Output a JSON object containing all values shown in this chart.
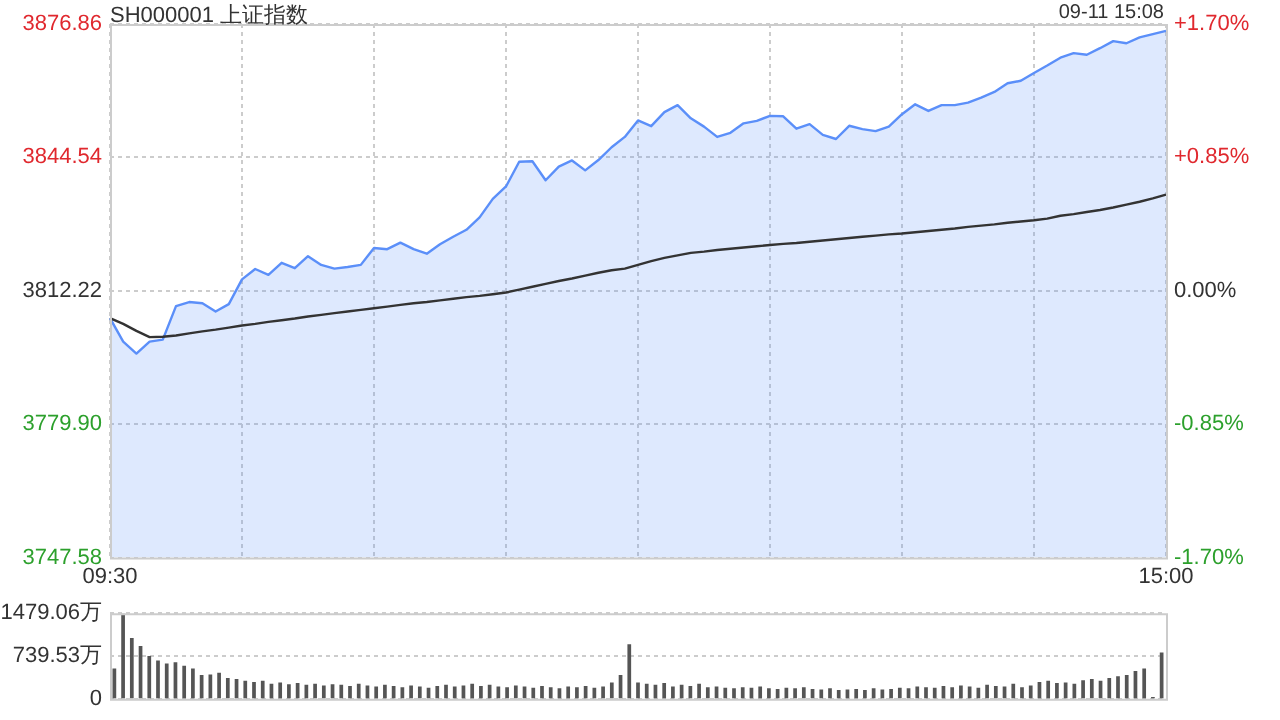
{
  "chart_data": [
    {
      "type": "line",
      "title": "SH000001 上证指数",
      "annotations": [
        "09-11 15:08"
      ],
      "grid": true,
      "marker": "none",
      "categories": [
        "09:30",
        null,
        null,
        null,
        null,
        null,
        null,
        null,
        null,
        null,
        null,
        null,
        null,
        null,
        null,
        null,
        null,
        null,
        null,
        null,
        null,
        null,
        null,
        null,
        null,
        null,
        null,
        null,
        null,
        null,
        null,
        null,
        null,
        null,
        null,
        null,
        null,
        null,
        null,
        null,
        null,
        null,
        null,
        null,
        null,
        null,
        null,
        null,
        null,
        null,
        null,
        null,
        null,
        null,
        null,
        null,
        null,
        null,
        null,
        null,
        null,
        null,
        null,
        null,
        null,
        null,
        null,
        null,
        null,
        null,
        null,
        null,
        null,
        null,
        null,
        null,
        null,
        null,
        null,
        null,
        "15:00"
      ],
      "ylim": [
        3747.58,
        3876.86
      ],
      "yticks": [
        3747.58,
        {
          "value": 3779.9,
          "label": "3779.90"
        },
        3812.22,
        3844.54,
        3876.86
      ],
      "y2lim": [
        -1.7,
        1.7
      ],
      "y2ticks": [
        {
          "value": -1.7,
          "label": "-1.70%"
        },
        {
          "value": -0.85,
          "label": "-0.85%"
        },
        {
          "value": 0,
          "label": "0.00%"
        },
        {
          "value": 0.85,
          "label": "+0.85%"
        },
        {
          "value": 1.7,
          "label": "+1.70%"
        }
      ],
      "series": [
        {
          "type": "area",
          "color": "#5b8ff9",
          "values": [
            3805.6,
            3799.9,
            3797,
            3799.9,
            3800.4,
            3808.5,
            3809.5,
            3809.2,
            3807.2,
            3809,
            3815,
            3817.5,
            3816.1,
            3819.0,
            3817.7,
            3820.6,
            3818.5,
            3817.6,
            3818,
            3818.5,
            3822.6,
            3822.3,
            3823.9,
            3822.3,
            3821.2,
            3823.5,
            3825.3,
            3827,
            3830,
            3834.5,
            3837.5,
            3843.5,
            3843.6,
            3839.0,
            3842.3,
            3843.8,
            3841.4,
            3843.9,
            3847,
            3849.5,
            3853.5,
            3852.1,
            3855.5,
            3857.2,
            3854,
            3852,
            3849.5,
            3850.5,
            3852.8,
            3853.4,
            3854.6,
            3854.5,
            3851.5,
            3852.6,
            3850,
            3849,
            3852.2,
            3851.4,
            3850.9,
            3852,
            3855,
            3857.4,
            3855.8,
            3857.2,
            3857.2,
            3857.8,
            3859.0,
            3860.4,
            3862.5,
            3863.1,
            3865,
            3866.8,
            3868.7,
            3869.8,
            3869.4,
            3871,
            3872.7,
            3872.2,
            3873.6,
            3874.4,
            3875.2
          ]
        },
        {
          "type": "line",
          "color": "#333333",
          "values": [
            3805.6,
            3804.2,
            3802.5,
            3801.0,
            3801.1,
            3801.4,
            3801.9,
            3802.4,
            3802.8,
            3803.3,
            3803.8,
            3804.2,
            3804.7,
            3805.1,
            3805.5,
            3806.0,
            3806.4,
            3806.8,
            3807.2,
            3807.6,
            3808.0,
            3808.4,
            3808.8,
            3809.2,
            3809.5,
            3809.9,
            3810.3,
            3810.7,
            3811.0,
            3811.4,
            3811.8,
            3812.5,
            3813.2,
            3813.9,
            3814.6,
            3815.2,
            3815.9,
            3816.6,
            3817.2,
            3817.6,
            3818.5,
            3819.4,
            3820.2,
            3820.8,
            3821.4,
            3821.7,
            3822.1,
            3822.4,
            3822.7,
            3823.0,
            3823.3,
            3823.6,
            3823.8,
            3824.1,
            3824.4,
            3824.7,
            3825.0,
            3825.3,
            3825.6,
            3825.9,
            3826.1,
            3826.4,
            3826.7,
            3827.0,
            3827.3,
            3827.7,
            3828.0,
            3828.3,
            3828.7,
            3829.0,
            3829.3,
            3829.7,
            3830.4,
            3830.8,
            3831.3,
            3831.8,
            3832.4,
            3833.1,
            3833.8,
            3834.6,
            3835.5
          ]
        }
      ]
    },
    {
      "type": "bar",
      "color": "#555555",
      "grid": "y",
      "tick_labels": "y",
      "categories": [
        null,
        null,
        null,
        null,
        null,
        null,
        null,
        null,
        null,
        null,
        null,
        null,
        null,
        null,
        null,
        null,
        null,
        null,
        null,
        null,
        null,
        null,
        null,
        null,
        null,
        null,
        null,
        null,
        null,
        null,
        null,
        null,
        null,
        null,
        null,
        null,
        null,
        null,
        null,
        null,
        null,
        null,
        null,
        null,
        null,
        null,
        null,
        null,
        null,
        null,
        null,
        null,
        null,
        null,
        null,
        null,
        null,
        null,
        null,
        null,
        null,
        null,
        null,
        null,
        null,
        null,
        null,
        null,
        null,
        null,
        null,
        null,
        null,
        null,
        null,
        null,
        null,
        null,
        null,
        null,
        null,
        null,
        null,
        null,
        null,
        null,
        null,
        null,
        null,
        null,
        null,
        null,
        null,
        null,
        null,
        null,
        null,
        null,
        null,
        null,
        null,
        null,
        null,
        null,
        null,
        null,
        null,
        null,
        null,
        null,
        null,
        null,
        null,
        null,
        null,
        null,
        null,
        null,
        null,
        null,
        null
      ],
      "ylim": [
        0,
        1479.06
      ],
      "yticks": [
        0,
        {
          "value": 739.53,
          "label": "739.53万"
        },
        {
          "value": 1479.06,
          "label": "1479.06万"
        }
      ],
      "values": [
        510,
        1460,
        1040,
        900,
        730,
        650,
        600,
        620,
        560,
        510,
        400,
        410,
        440,
        350,
        330,
        300,
        280,
        300,
        250,
        270,
        240,
        260,
        230,
        250,
        220,
        240,
        230,
        210,
        250,
        220,
        200,
        230,
        210,
        190,
        220,
        200,
        180,
        210,
        230,
        200,
        220,
        250,
        210,
        230,
        200,
        190,
        220,
        200,
        180,
        210,
        190,
        170,
        200,
        190,
        210,
        180,
        200,
        270,
        400,
        930,
        270,
        250,
        230,
        260,
        200,
        230,
        210,
        250,
        190,
        200,
        180,
        170,
        190,
        180,
        200,
        170,
        160,
        180,
        170,
        190,
        160,
        150,
        170,
        140,
        150,
        160,
        140,
        170,
        150,
        160,
        180,
        170,
        200,
        190,
        180,
        210,
        190,
        220,
        200,
        180,
        230,
        210,
        200,
        250,
        190,
        220,
        280,
        300,
        260,
        270,
        250,
        310,
        330,
        300,
        350,
        380,
        400,
        470,
        510,
        20,
        790
      ]
    }
  ]
}
